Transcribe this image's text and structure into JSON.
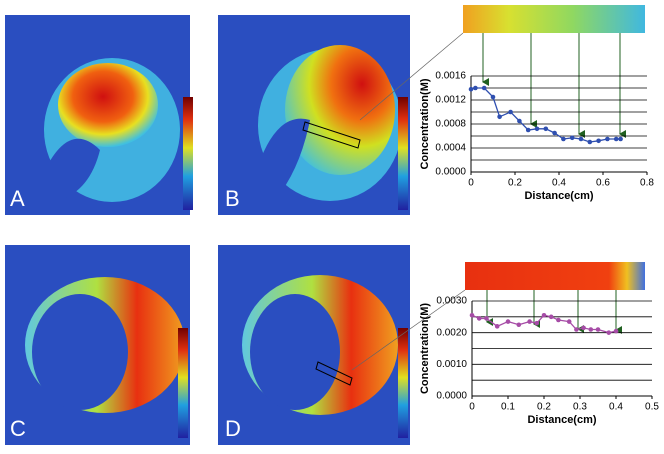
{
  "panel_labels": [
    "A",
    "B",
    "C",
    "D"
  ],
  "chart_data": [
    {
      "type": "line",
      "ylabel": "Concentration(M)",
      "xlabel": "Distance(cm)",
      "x": [
        0,
        0.02,
        0.06,
        0.1,
        0.13,
        0.18,
        0.22,
        0.26,
        0.3,
        0.34,
        0.38,
        0.42,
        0.46,
        0.5,
        0.54,
        0.58,
        0.62,
        0.66,
        0.68
      ],
      "series": [
        {
          "color": "#2f4fb0",
          "values": [
            0.00138,
            0.0014,
            0.0014,
            0.00125,
            0.00092,
            0.001,
            0.00085,
            0.0007,
            0.00072,
            0.00072,
            0.00065,
            0.00055,
            0.00057,
            0.00055,
            0.0005,
            0.00052,
            0.00055,
            0.00055,
            0.00055
          ]
        }
      ],
      "xlim": [
        0,
        0.8
      ],
      "xticks": [
        0,
        0.2,
        0.4,
        0.6,
        0.8
      ],
      "ylim": [
        0,
        0.0016
      ],
      "yticks": [
        {
          "value": 0,
          "label": "0.0000"
        },
        {
          "value": 0.0004,
          "label": "0.0004"
        },
        {
          "value": 0.0008,
          "label": "0.0008"
        },
        {
          "value": 0.0012,
          "label": "0.0012"
        },
        {
          "value": 0.0016,
          "label": "0.0016"
        }
      ],
      "minor_yticks": [
        0.0002,
        0.0006,
        0.001,
        0.0014
      ],
      "grid": true
    },
    {
      "type": "line",
      "ylabel": "Concentration(M)",
      "xlabel": "Distance(cm)",
      "x": [
        0,
        0.02,
        0.04,
        0.07,
        0.1,
        0.13,
        0.16,
        0.18,
        0.2,
        0.22,
        0.24,
        0.27,
        0.29,
        0.31,
        0.33,
        0.35,
        0.38,
        0.4
      ],
      "series": [
        {
          "color": "#a64ca6",
          "values": [
            0.00255,
            0.00245,
            0.00245,
            0.0022,
            0.00235,
            0.00225,
            0.00235,
            0.0023,
            0.00255,
            0.0025,
            0.0024,
            0.00235,
            0.0021,
            0.00215,
            0.0021,
            0.0021,
            0.002,
            0.00205
          ]
        }
      ],
      "xlim": [
        0,
        0.5
      ],
      "xticks": [
        0,
        0.1,
        0.2,
        0.3,
        0.4,
        0.5
      ],
      "ylim": [
        0,
        0.003
      ],
      "yticks": [
        {
          "value": 0,
          "label": "0.0000"
        },
        {
          "value": 0.001,
          "label": "0.0010"
        },
        {
          "value": 0.002,
          "label": "0.0020"
        },
        {
          "value": 0.003,
          "label": "0.0030"
        }
      ],
      "minor_yticks": [
        0.0005,
        0.0015,
        0.0025
      ],
      "grid": true
    }
  ]
}
